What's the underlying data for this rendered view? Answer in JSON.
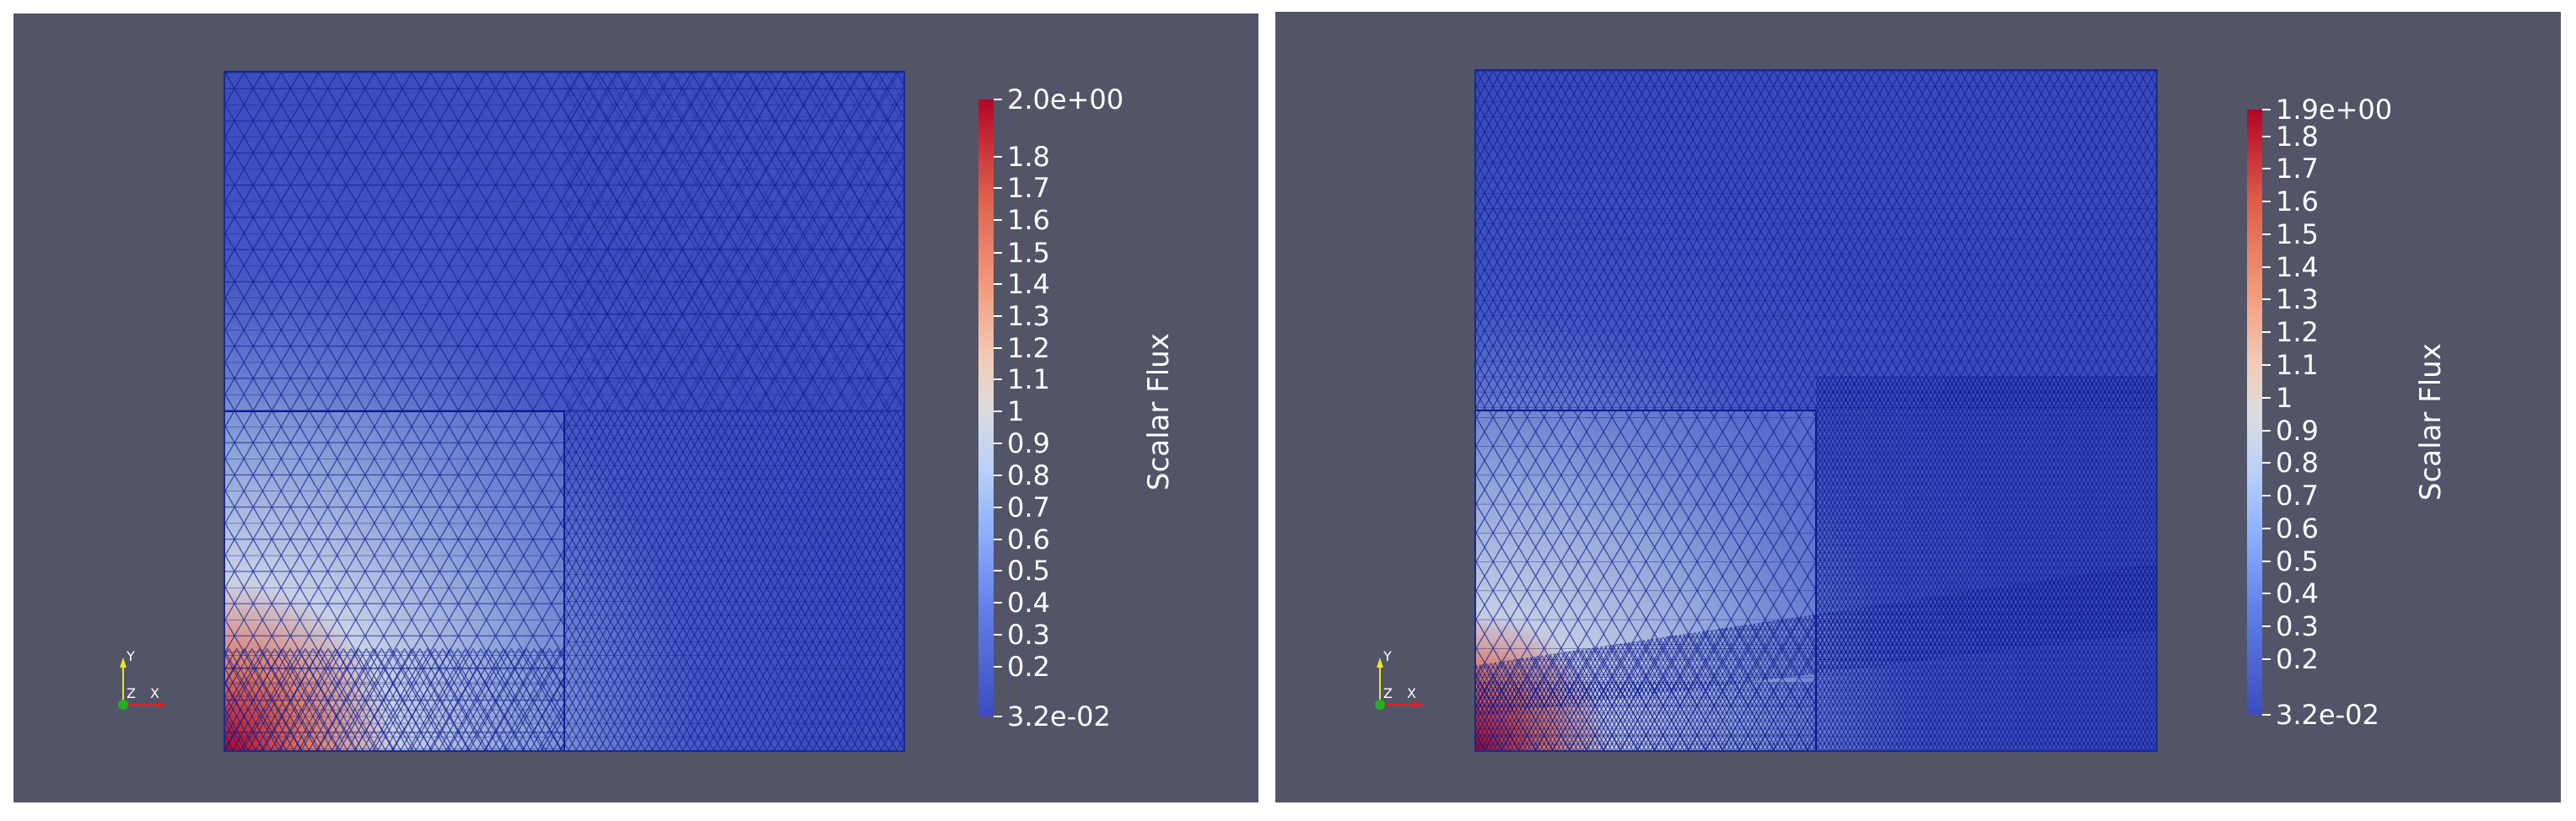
{
  "views": [
    {
      "colorbar": {
        "title": "Scalar Flux",
        "ticks": [
          "2.0e+00",
          "1.8",
          "1.7",
          "1.6",
          "1.5",
          "1.4",
          "1.3",
          "1.2",
          "1.1",
          "1",
          "0.9",
          "0.8",
          "0.7",
          "0.6",
          "0.5",
          "0.4",
          "0.3",
          "0.2",
          "3.2e-02"
        ]
      },
      "axes": {
        "y": "Y",
        "z": "Z",
        "x": "X"
      }
    },
    {
      "colorbar": {
        "title": "Scalar Flux",
        "ticks": [
          "1.9e+00",
          "1.8",
          "1.7",
          "1.6",
          "1.5",
          "1.4",
          "1.3",
          "1.2",
          "1.1",
          "1",
          "0.9",
          "0.8",
          "0.7",
          "0.6",
          "0.5",
          "0.4",
          "0.3",
          "0.2",
          "3.2e-02"
        ]
      },
      "axes": {
        "y": "Y",
        "z": "Z",
        "x": "X"
      }
    }
  ],
  "colors": {
    "background": "#525468",
    "mesh_line": "#0c1a8e",
    "field_low": "#3b4cc0",
    "field_high": "#b40426"
  }
}
